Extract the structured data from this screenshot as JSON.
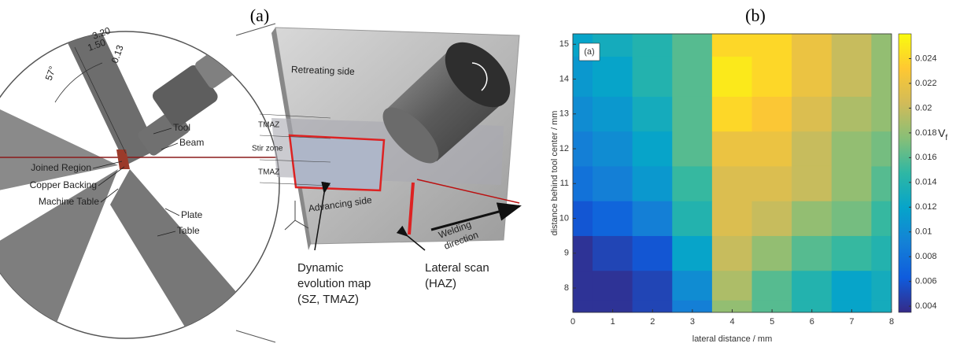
{
  "panel_labels": [
    "(a)",
    "(b)"
  ],
  "diagram_left": {
    "dimensions": [
      "3.20",
      "1.50",
      "0.13",
      "57°"
    ],
    "labels": [
      "Tool",
      "Beam",
      "Joined Region",
      "Copper Backing",
      "Machine Table",
      "Plate",
      "Table"
    ]
  },
  "diagram_middle": {
    "labels": [
      "Retreating side",
      "TMAZ",
      "Stir zone",
      "TMAZ",
      "Advancing side"
    ],
    "arrow_label": [
      "Welding",
      "direction"
    ],
    "callouts": [
      {
        "lines": [
          "Dynamic",
          "evolution map",
          "(SZ, TMAZ)"
        ]
      },
      {
        "lines": [
          "Lateral scan",
          "(HAZ)"
        ]
      }
    ]
  },
  "chart_data": {
    "type": "contour",
    "inset_label": "(a)",
    "xlabel": "lateral distance / mm",
    "ylabel": "distance behind tool center / mm",
    "colorbar_label": "Vf",
    "x": [
      0,
      1,
      2,
      3,
      4,
      5,
      6,
      7,
      8
    ],
    "y": [
      7.3,
      8,
      9,
      10,
      11,
      12,
      13,
      14,
      15.3
    ],
    "z": [
      [
        0.004,
        0.004,
        0.005,
        0.009,
        0.018,
        0.016,
        0.014,
        0.012,
        0.013
      ],
      [
        0.004,
        0.004,
        0.005,
        0.01,
        0.019,
        0.016,
        0.014,
        0.012,
        0.013
      ],
      [
        0.004,
        0.005,
        0.006,
        0.012,
        0.02,
        0.018,
        0.016,
        0.015,
        0.014
      ],
      [
        0.006,
        0.007,
        0.009,
        0.014,
        0.021,
        0.02,
        0.018,
        0.017,
        0.015
      ],
      [
        0.008,
        0.009,
        0.011,
        0.015,
        0.021,
        0.021,
        0.02,
        0.018,
        0.016
      ],
      [
        0.009,
        0.01,
        0.012,
        0.016,
        0.022,
        0.022,
        0.02,
        0.018,
        0.017
      ],
      [
        0.01,
        0.011,
        0.013,
        0.016,
        0.024,
        0.023,
        0.021,
        0.019,
        0.018
      ],
      [
        0.011,
        0.012,
        0.014,
        0.016,
        0.025,
        0.024,
        0.022,
        0.02,
        0.018
      ],
      [
        0.012,
        0.013,
        0.014,
        0.016,
        0.024,
        0.024,
        0.022,
        0.02,
        0.018
      ]
    ],
    "xlim": [
      0,
      8
    ],
    "ylim": [
      7.3,
      15.3
    ],
    "xticks": [
      0,
      1,
      2,
      3,
      4,
      5,
      6,
      7,
      8
    ],
    "yticks": [
      8,
      9,
      10,
      11,
      12,
      13,
      14,
      15
    ],
    "clim": [
      0.0035,
      0.026
    ],
    "cticks": [
      0.004,
      0.006,
      0.008,
      0.01,
      0.012,
      0.014,
      0.016,
      0.018,
      0.02,
      0.022,
      0.024
    ],
    "colormap": [
      "#352a87",
      "#0f5cdd",
      "#1481d6",
      "#06a4ca",
      "#2eb7a4",
      "#87bf77",
      "#d1bb59",
      "#fec832",
      "#f9fb0e"
    ]
  }
}
